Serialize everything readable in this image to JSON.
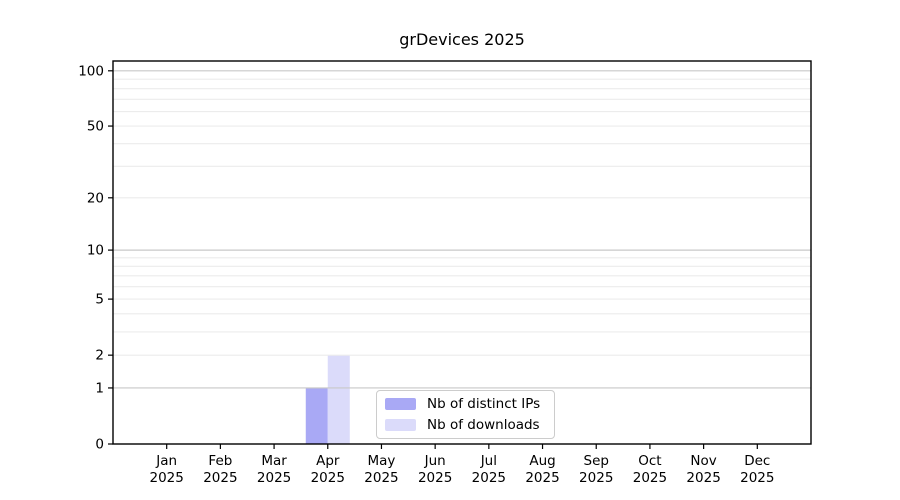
{
  "title": "grDevices 2025",
  "chart_data": {
    "type": "bar",
    "title": "grDevices 2025",
    "categories": [
      "Jan 2025",
      "Feb 2025",
      "Mar 2025",
      "Apr 2025",
      "May 2025",
      "Jun 2025",
      "Jul 2025",
      "Aug 2025",
      "Sep 2025",
      "Oct 2025",
      "Nov 2025",
      "Dec 2025"
    ],
    "series": [
      {
        "name": "Nb of distinct IPs",
        "color": "#a9a9f5",
        "values": [
          0,
          0,
          0,
          1,
          0,
          0,
          0,
          0,
          0,
          0,
          0,
          0
        ]
      },
      {
        "name": "Nb of downloads",
        "color": "#dbdbfa",
        "values": [
          0,
          0,
          0,
          2,
          0,
          0,
          0,
          0,
          0,
          0,
          0,
          0
        ]
      }
    ],
    "yscale": "log1p",
    "yticks": [
      0,
      1,
      2,
      5,
      10,
      20,
      50,
      100
    ],
    "major_gridlines": [
      1,
      10,
      100
    ],
    "minor_gridlines": [
      2,
      3,
      4,
      5,
      6,
      7,
      8,
      9,
      20,
      30,
      40,
      50,
      60,
      70,
      80,
      90
    ],
    "ylim": [
      0,
      113
    ],
    "xlabel": "",
    "ylabel": "",
    "grid": "horizontal",
    "legend": {
      "entries": [
        "Nb of distinct IPs",
        "Nb of downloads"
      ],
      "position": "inside-bottom-center"
    }
  },
  "colors": {
    "background": "#ffffff",
    "bar_distinct_ips": "#a9a9f5",
    "bar_downloads": "#dbdbfa",
    "grid_minor": "#ececec",
    "grid_major": "#c8c8c8",
    "axis_spine": "#000000",
    "tick": "#000000",
    "text": "#000000",
    "legend_border": "#cccccc"
  }
}
